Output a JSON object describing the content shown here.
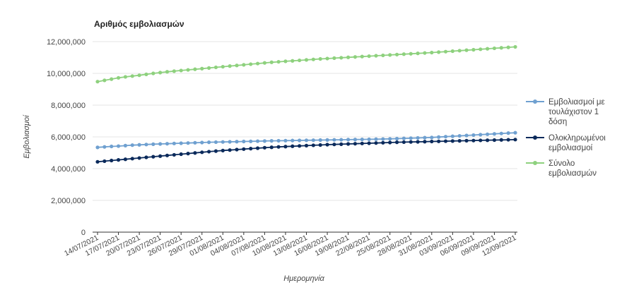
{
  "chart_data": {
    "type": "line",
    "title": "Αριθμός εμβολιασμών",
    "xlabel": "Ημερομηνία",
    "ylabel": "Εμβολιασμοί",
    "ylim": [
      0,
      12000000
    ],
    "y_ticks": [
      "0",
      "2,000,000",
      "4,000,000",
      "6,000,000",
      "8,000,000",
      "10,000,000",
      "12,000,000"
    ],
    "grid": "horizontal",
    "legend": "right",
    "x_tick_labels": [
      "14/07/2021",
      "17/07/2021",
      "20/07/2021",
      "23/07/2021",
      "26/07/2021",
      "29/07/2021",
      "01/08/2021",
      "04/08/2021",
      "07/08/2021",
      "10/08/2021",
      "13/08/2021",
      "16/08/2021",
      "19/08/2021",
      "22/08/2021",
      "25/08/2021",
      "28/08/2021",
      "31/08/2021",
      "03/09/2021",
      "06/09/2021",
      "09/09/2021",
      "12/09/2021"
    ],
    "categories": [
      "14/07/2021",
      "15/07/2021",
      "16/07/2021",
      "17/07/2021",
      "18/07/2021",
      "19/07/2021",
      "20/07/2021",
      "21/07/2021",
      "22/07/2021",
      "23/07/2021",
      "24/07/2021",
      "25/07/2021",
      "26/07/2021",
      "27/07/2021",
      "28/07/2021",
      "29/07/2021",
      "30/07/2021",
      "31/07/2021",
      "01/08/2021",
      "02/08/2021",
      "03/08/2021",
      "04/08/2021",
      "05/08/2021",
      "06/08/2021",
      "07/08/2021",
      "08/08/2021",
      "09/08/2021",
      "10/08/2021",
      "11/08/2021",
      "12/08/2021",
      "13/08/2021",
      "14/08/2021",
      "15/08/2021",
      "16/08/2021",
      "17/08/2021",
      "18/08/2021",
      "19/08/2021",
      "20/08/2021",
      "21/08/2021",
      "22/08/2021",
      "23/08/2021",
      "24/08/2021",
      "25/08/2021",
      "26/08/2021",
      "27/08/2021",
      "28/08/2021",
      "29/08/2021",
      "30/08/2021",
      "31/08/2021",
      "01/09/2021",
      "02/09/2021",
      "03/09/2021",
      "04/09/2021",
      "05/09/2021",
      "06/09/2021",
      "07/09/2021",
      "08/09/2021",
      "09/09/2021",
      "10/09/2021",
      "11/09/2021",
      "12/09/2021"
    ],
    "series": [
      {
        "name": "Εμβολιασμοί με τουλάχιστον 1 δόση",
        "color": "#6fa0d0",
        "values": [
          5340000,
          5370000,
          5400000,
          5420000,
          5450000,
          5480000,
          5500000,
          5520000,
          5540000,
          5555000,
          5570000,
          5585000,
          5600000,
          5615000,
          5630000,
          5645000,
          5660000,
          5670000,
          5680000,
          5690000,
          5700000,
          5710000,
          5720000,
          5730000,
          5740000,
          5750000,
          5757000,
          5764000,
          5771000,
          5778000,
          5785000,
          5792000,
          5799000,
          5806000,
          5813000,
          5820000,
          5827000,
          5834000,
          5841000,
          5848000,
          5855000,
          5865000,
          5875000,
          5890000,
          5905000,
          5920000,
          5935000,
          5950000,
          5965000,
          5990000,
          6015000,
          6040000,
          6065000,
          6090000,
          6115000,
          6140000,
          6165000,
          6190000,
          6215000,
          6240000,
          6260000
        ]
      },
      {
        "name": "Ολοκληρωμένοι εμβολιασμοί",
        "color": "#0b2a5b",
        "values": [
          4430000,
          4470000,
          4510000,
          4550000,
          4590000,
          4630000,
          4670000,
          4710000,
          4750000,
          4790000,
          4830000,
          4870000,
          4910000,
          4950000,
          4990000,
          5030000,
          5070000,
          5105000,
          5140000,
          5170000,
          5200000,
          5230000,
          5260000,
          5290000,
          5320000,
          5345000,
          5370000,
          5390000,
          5410000,
          5430000,
          5450000,
          5470000,
          5490000,
          5510000,
          5525000,
          5540000,
          5555000,
          5570000,
          5585000,
          5600000,
          5615000,
          5630000,
          5645000,
          5660000,
          5670000,
          5680000,
          5690000,
          5700000,
          5710000,
          5720000,
          5730000,
          5740000,
          5750000,
          5760000,
          5770000,
          5780000,
          5790000,
          5800000,
          5810000,
          5820000,
          5830000
        ]
      },
      {
        "name": "Σύνολο εμβολιασμών",
        "color": "#8ed17e",
        "values": [
          9480000,
          9560000,
          9640000,
          9720000,
          9780000,
          9830000,
          9880000,
          9940000,
          10000000,
          10050000,
          10100000,
          10140000,
          10180000,
          10220000,
          10260000,
          10300000,
          10340000,
          10380000,
          10420000,
          10460000,
          10500000,
          10540000,
          10580000,
          10620000,
          10660000,
          10700000,
          10730000,
          10760000,
          10790000,
          10820000,
          10850000,
          10880000,
          10910000,
          10935000,
          10960000,
          10985000,
          11010000,
          11035000,
          11060000,
          11085000,
          11110000,
          11135000,
          11160000,
          11185000,
          11210000,
          11235000,
          11260000,
          11285000,
          11310000,
          11340000,
          11370000,
          11400000,
          11430000,
          11460000,
          11490000,
          11520000,
          11550000,
          11580000,
          11610000,
          11640000,
          11670000
        ]
      }
    ]
  },
  "legend_items": [
    {
      "lines": [
        "Εμβολιασμοί με",
        "τουλάχιστον 1",
        "δόση"
      ]
    },
    {
      "lines": [
        "Ολοκληρωμένοι",
        "εμβολιασμοί"
      ]
    },
    {
      "lines": [
        "Σύνολο",
        "εμβολιασμών"
      ]
    }
  ],
  "colors": {
    "grid": "#e6e6e6",
    "axis": "#333333"
  }
}
